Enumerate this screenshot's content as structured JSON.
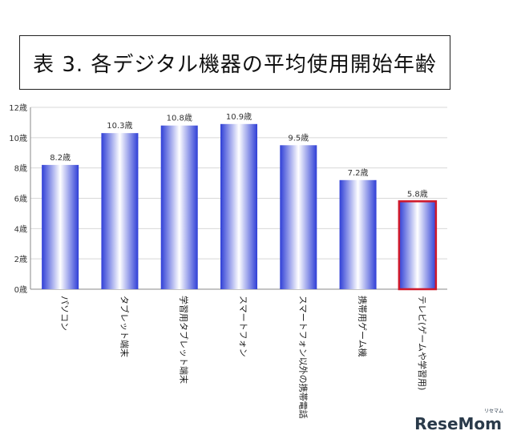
{
  "title": "表 3.  各デジタル機器の平均使用開始年齢",
  "watermark": "ReseMom",
  "watermark_sub": "リセマム",
  "chart_data": {
    "type": "bar",
    "title": "表 3.  各デジタル機器の平均使用開始年齢",
    "categories": [
      "パソコン",
      "タブレット端末",
      "学習用タブレット端末",
      "スマートフォン",
      "スマートフォン以外の携帯電話",
      "携帯用ゲーム機",
      "テレビ(ゲームや学習用)"
    ],
    "values": [
      8.2,
      10.3,
      10.8,
      10.9,
      9.5,
      7.2,
      5.8
    ],
    "data_labels": [
      "8.2歳",
      "10.3歳",
      "10.8歳",
      "10.9歳",
      "9.5歳",
      "7.2歳",
      "5.8歳"
    ],
    "yticks": [
      "0歳",
      "2歳",
      "4歳",
      "6歳",
      "8歳",
      "10歳",
      "12歳"
    ],
    "ylim": [
      0,
      12
    ],
    "grid": true,
    "highlight_index": 6,
    "colors": {
      "bar_edge": "#2f3fd6",
      "bar_mid": "#ffffff",
      "highlight_border": "#d0192b",
      "grid": "#d8d8d8",
      "axis": "#8a8a8a"
    }
  }
}
